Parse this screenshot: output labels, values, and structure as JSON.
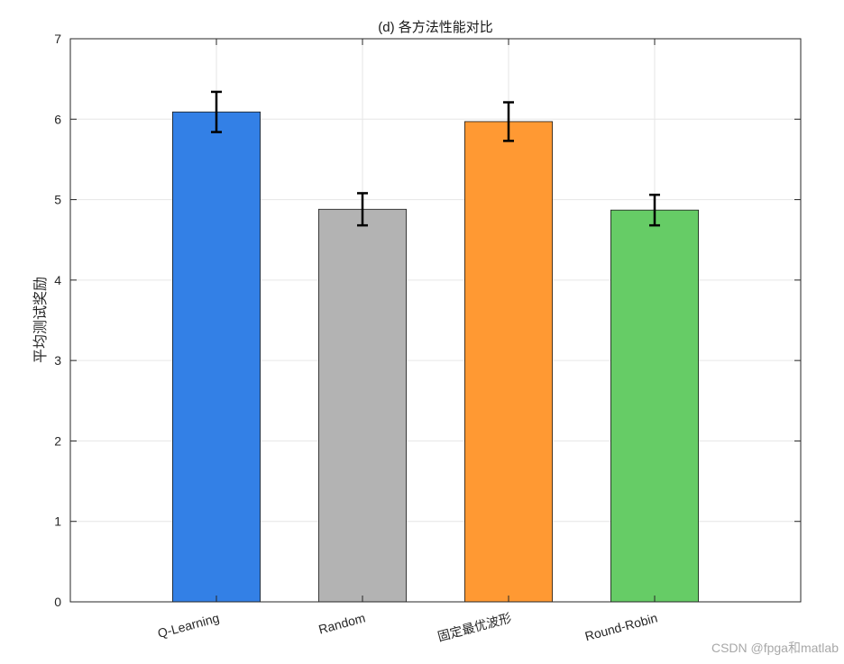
{
  "chart_data": {
    "type": "bar",
    "title": "(d) 各方法性能对比",
    "xlabel": "",
    "ylabel": "平均测试奖励",
    "categories": [
      "Q-Learning",
      "Random",
      "固定最优波形",
      "Round-Robin"
    ],
    "values": [
      6.09,
      4.88,
      5.97,
      4.87
    ],
    "errors": [
      0.25,
      0.2,
      0.24,
      0.19
    ],
    "colors": [
      "#3380e6",
      "#b3b3b3",
      "#ff9933",
      "#66cc66"
    ],
    "ylim": [
      0,
      7
    ],
    "yticks": [
      0,
      1,
      2,
      3,
      4,
      5,
      6,
      7
    ],
    "grid": true,
    "legend": "none"
  },
  "watermark": "CSDN @fpga和matlab"
}
